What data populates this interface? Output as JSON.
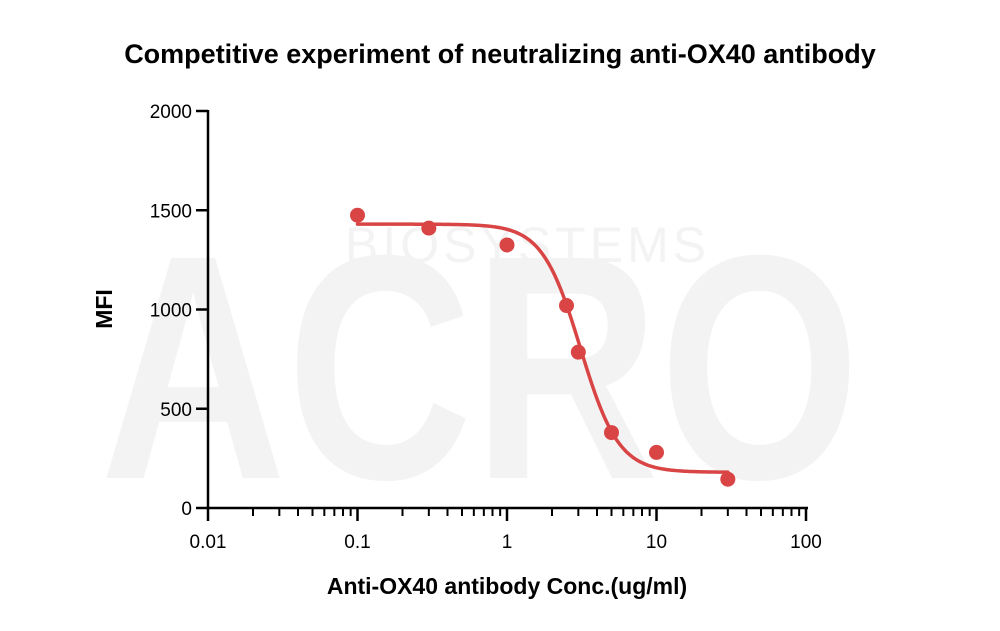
{
  "chart_data": {
    "type": "scatter",
    "title": "Competitive experiment of neutralizing anti-OX40 antibody",
    "xlabel": "Anti-OX40 antibody Conc.(ug/ml)",
    "ylabel": "MFI",
    "xscale": "log10",
    "xlim": [
      0.01,
      100
    ],
    "ylim": [
      0,
      2000
    ],
    "x_ticks": [
      0.01,
      0.1,
      1,
      10,
      100
    ],
    "x_tick_labels": [
      "0.01",
      "0.1",
      "1",
      "10",
      "100"
    ],
    "y_ticks": [
      0,
      500,
      1000,
      1500,
      2000
    ],
    "y_tick_labels": [
      "0",
      "500",
      "1000",
      "1500",
      "2000"
    ],
    "grid": false,
    "series": [
      {
        "name": "Anti-OX40 antibody",
        "color": "#d94545",
        "x": [
          0.1,
          0.3,
          1,
          2.5,
          3,
          5,
          10,
          30
        ],
        "y": [
          1475,
          1410,
          1325,
          1020,
          785,
          380,
          280,
          145
        ]
      }
    ],
    "fit_curve": {
      "model": "4PL",
      "color": "#d94545",
      "top": 1430,
      "bottom": 180,
      "ic50": 3.1,
      "hill": 3.4
    }
  },
  "watermark": {
    "text": "ACRO",
    "subtext": "BIOSYSTEMS"
  }
}
